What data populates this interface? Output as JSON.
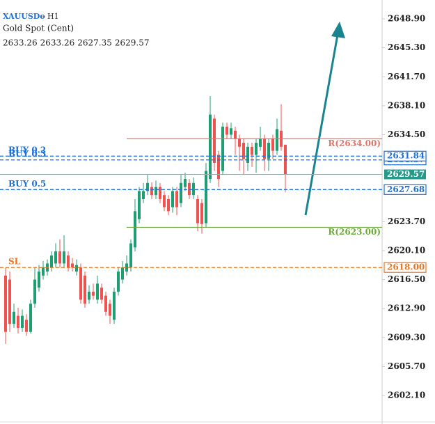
{
  "chart_data": {
    "type": "candlestick",
    "symbol": "XAUUSDc",
    "timeframe": "H1",
    "subtitle": "Gold Spot (Cent)",
    "ohlc_header": [
      2633.26,
      2633.26,
      2627.35,
      2629.57
    ],
    "up_color": "#1f9e72",
    "down_color": "#ef5350",
    "open": [
      2617,
      2616.5,
      2611,
      2612,
      2610.5,
      2611.5,
      2610,
      2613.5,
      2615.5,
      2617,
      2617.5,
      2618,
      2618.5,
      2620,
      2618.5,
      2619.5,
      2618.5,
      2617.5,
      2618,
      2617,
      2614,
      2615,
      2614,
      2615.5,
      2614.5,
      2613.5,
      2611.5,
      2615,
      2616.5,
      2617.5,
      2618,
      2620.5,
      2624,
      2626.5,
      2627.5,
      2628,
      2627,
      2628,
      2627,
      2626.5,
      2625.5,
      2627.5,
      2626,
      2628,
      2628.5,
      2627,
      2626.5,
      2626,
      2623.5,
      2629,
      2636.5,
      2632,
      2630,
      2635.5,
      2634.5,
      2635,
      2634,
      2633.5,
      2631,
      2633,
      2632,
      2633,
      2634,
      2631.5,
      2634,
      2632.5,
      2635,
      2633.26
    ],
    "high": [
      2618,
      2617.5,
      2613.5,
      2613,
      2612.8,
      2612.2,
      2614,
      2618,
      2618.3,
      2618.8,
      2619,
      2620,
      2621,
      2621.5,
      2622,
      2620,
      2619.2,
      2619,
      2618.5,
      2617.5,
      2615.8,
      2616,
      2617,
      2616,
      2615,
      2614,
      2615.5,
      2618,
      2618.8,
      2619.5,
      2621.5,
      2626.5,
      2628,
      2628.5,
      2629.5,
      2628.6,
      2628.8,
      2628.5,
      2627.5,
      2627,
      2628,
      2628,
      2629.5,
      2629.8,
      2629,
      2629.2,
      2627,
      2626.5,
      2631,
      2639.3,
      2637,
      2632.5,
      2636,
      2636,
      2636,
      2635.5,
      2634.5,
      2634,
      2633.5,
      2633.5,
      2634,
      2635.5,
      2634.5,
      2634,
      2634.5,
      2636.5,
      2638.3,
      2633.26
    ],
    "low": [
      2608.5,
      2610,
      2610.5,
      2609.8,
      2610,
      2609.5,
      2609.8,
      2613,
      2615,
      2616.5,
      2617,
      2617.5,
      2618,
      2618,
      2618,
      2617.5,
      2617.5,
      2617,
      2613.5,
      2613,
      2613.5,
      2614,
      2613.5,
      2613.5,
      2612,
      2611,
      2611,
      2614.5,
      2616,
      2617,
      2617.5,
      2620,
      2623.5,
      2626,
      2627,
      2626.5,
      2626.5,
      2626,
      2625,
      2624.5,
      2624.8,
      2624.5,
      2625.5,
      2627.5,
      2626.5,
      2626.5,
      2622.5,
      2622.2,
      2623,
      2628.5,
      2630,
      2628,
      2629.5,
      2634,
      2634,
      2632,
      2630,
      2629.5,
      2630,
      2630.5,
      2629.8,
      2632.5,
      2630,
      2630,
      2631.5,
      2632,
      2632.5,
      2627.35
    ],
    "close": [
      2610,
      2611,
      2612.5,
      2610.5,
      2612,
      2610,
      2613.5,
      2616.5,
      2617.5,
      2618,
      2618.5,
      2619.5,
      2620,
      2618.5,
      2620,
      2618,
      2618,
      2618.3,
      2614,
      2613.5,
      2615,
      2614.5,
      2616,
      2614,
      2612.5,
      2612,
      2615,
      2617.5,
      2618,
      2618.5,
      2621,
      2625,
      2627.5,
      2627.5,
      2628.5,
      2627,
      2628,
      2626.5,
      2625.5,
      2625,
      2627.5,
      2625.5,
      2628.5,
      2629,
      2627,
      2628.5,
      2623.5,
      2623.4,
      2630,
      2637,
      2631,
      2629,
      2635.5,
      2634.5,
      2635.3,
      2634,
      2633,
      2631.5,
      2633,
      2632,
      2633.5,
      2634,
      2631.5,
      2633.5,
      2632.5,
      2635.2,
      2633,
      2629.57
    ],
    "ylim": [
      2598.9,
      2651.24
    ],
    "yticks": [
      {
        "value": 2648.9,
        "label": "2648.90"
      },
      {
        "value": 2645.3,
        "label": "2645.30"
      },
      {
        "value": 2641.7,
        "label": "2641.70"
      },
      {
        "value": 2638.1,
        "label": "2638.10"
      },
      {
        "value": 2634.5,
        "label": "2634.50"
      },
      {
        "value": 2623.7,
        "label": "2623.70"
      },
      {
        "value": 2620.1,
        "label": "2620.10"
      },
      {
        "value": 2616.5,
        "label": "2616.50"
      },
      {
        "value": 2612.9,
        "label": "2612.90"
      },
      {
        "value": 2609.3,
        "label": "2609.30"
      },
      {
        "value": 2605.7,
        "label": "2605.70"
      },
      {
        "value": 2602.1,
        "label": "2602.10"
      }
    ],
    "levels": [
      {
        "name": "R(2634.00)",
        "price": 2634,
        "style": "solid",
        "color": "#e57368"
      },
      {
        "name": "R(2623.00)",
        "price": 2623,
        "style": "solid",
        "color": "#6aaa3a"
      },
      {
        "name": "SL",
        "price": {
          "value": 2618,
          "label": "2618.00"
        },
        "style": "dashed",
        "color": "#e8741f"
      },
      {
        "name": "BUY 0.5",
        "price": 2627.68,
        "style": "dashed",
        "color": "#1e6fd9"
      },
      {
        "name": "BUY 0.3",
        "price": 2631.37,
        "style": "dashed",
        "color": "#1e6fd9"
      },
      {
        "name": "BUY 0.2",
        "price": 2631.84,
        "style": "dashed",
        "color": "#1e6fd9"
      },
      {
        "price": 2629.57,
        "style": "current",
        "color": "#26998a"
      }
    ]
  }
}
